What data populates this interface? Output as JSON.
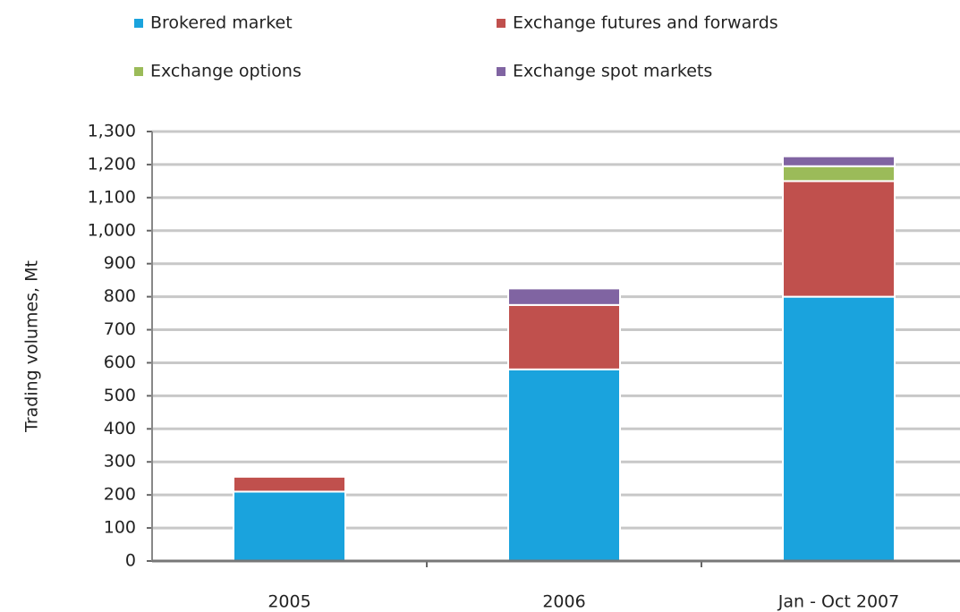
{
  "chart_data": {
    "type": "stacked_bar",
    "y_label": "Trading volumes, Mt",
    "categories": [
      "2005",
      "2006",
      "Jan - Oct 2007"
    ],
    "series": [
      {
        "name": "Brokered market",
        "color": "#1aa3dd",
        "values": [
          210,
          580,
          800
        ]
      },
      {
        "name": "Exchange futures and forwards",
        "color": "#c0504d",
        "values": [
          45,
          195,
          350
        ]
      },
      {
        "name": "Exchange options",
        "color": "#9bbb59",
        "values": [
          0,
          0,
          45
        ]
      },
      {
        "name": "Exchange spot markets",
        "color": "#8064a2",
        "values": [
          0,
          50,
          30
        ]
      }
    ],
    "ylim": [
      0,
      1300
    ],
    "yticks": [
      0,
      100,
      200,
      300,
      400,
      500,
      600,
      700,
      800,
      900,
      {
        "value": 1000,
        "label": "1,000"
      },
      {
        "value": 1100,
        "label": "1,100"
      },
      {
        "value": 1200,
        "label": "1,200"
      },
      {
        "value": 1300,
        "label": "1,300"
      }
    ],
    "grid": true
  }
}
